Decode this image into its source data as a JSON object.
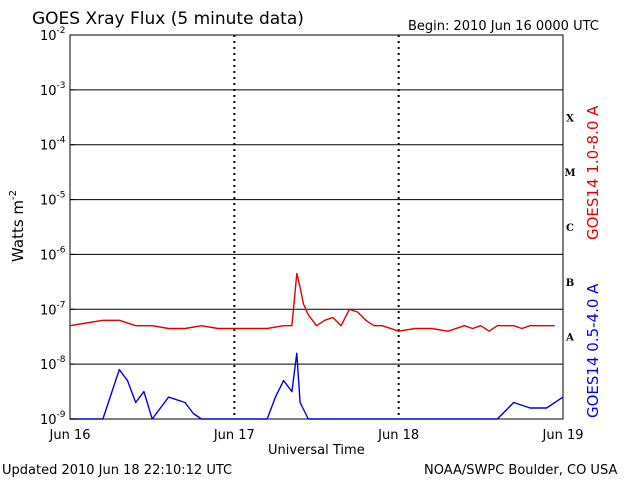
{
  "chart_data": {
    "type": "line",
    "title": "GOES Xray Flux (5 minute data)",
    "begin_label": "Begin:  2010 Jun 16 0000 UTC",
    "xlabel": "Universal Time",
    "ylabel_main": "Watts m",
    "ylabel_sup": "-2",
    "x_ticks": [
      "Jun 16",
      "Jun 17",
      "Jun 18",
      "Jun 19"
    ],
    "y_ticks": [
      {
        "base": "10",
        "exp": "-2"
      },
      {
        "base": "10",
        "exp": "-3"
      },
      {
        "base": "10",
        "exp": "-4"
      },
      {
        "base": "10",
        "exp": "-5"
      },
      {
        "base": "10",
        "exp": "-6"
      },
      {
        "base": "10",
        "exp": "-7"
      },
      {
        "base": "10",
        "exp": "-8"
      },
      {
        "base": "10",
        "exp": "-9"
      }
    ],
    "y_log_range": [
      -9,
      -2
    ],
    "x_range_days": [
      0,
      3
    ],
    "flare_classes": [
      "X",
      "M",
      "C",
      "B",
      "A"
    ],
    "series": [
      {
        "name": "GOES14 1.0-8.0 A",
        "color": "#e00000",
        "x": [
          0,
          0.1,
          0.2,
          0.3,
          0.4,
          0.5,
          0.6,
          0.7,
          0.8,
          0.9,
          1.0,
          1.1,
          1.2,
          1.3,
          1.35,
          1.38,
          1.4,
          1.42,
          1.45,
          1.5,
          1.55,
          1.6,
          1.65,
          1.7,
          1.75,
          1.8,
          1.85,
          1.9,
          2.0,
          2.1,
          2.2,
          2.3,
          2.4,
          2.45,
          2.5,
          2.55,
          2.6,
          2.7,
          2.75,
          2.8,
          2.9,
          2.95
        ],
        "log10_flux": [
          -7.3,
          -7.25,
          -7.2,
          -7.2,
          -7.3,
          -7.3,
          -7.35,
          -7.35,
          -7.3,
          -7.35,
          -7.35,
          -7.35,
          -7.35,
          -7.3,
          -7.3,
          -6.35,
          -6.6,
          -6.9,
          -7.1,
          -7.3,
          -7.2,
          -7.15,
          -7.3,
          -7.0,
          -7.05,
          -7.2,
          -7.3,
          -7.3,
          -7.4,
          -7.35,
          -7.35,
          -7.4,
          -7.3,
          -7.35,
          -7.3,
          -7.4,
          -7.3,
          -7.3,
          -7.35,
          -7.3,
          -7.3,
          -7.3
        ]
      },
      {
        "name": "GOES14 0.5-4.0 A",
        "color": "#0000e0",
        "x": [
          0,
          0.2,
          0.3,
          0.35,
          0.4,
          0.45,
          0.5,
          0.6,
          0.7,
          0.75,
          0.8,
          0.9,
          1.0,
          1.1,
          1.2,
          1.25,
          1.3,
          1.35,
          1.38,
          1.4,
          1.45,
          1.5,
          1.6,
          1.7,
          1.8,
          1.9,
          2.0,
          2.1,
          2.2,
          2.3,
          2.4,
          2.5,
          2.6,
          2.7,
          2.8,
          2.9,
          3.0
        ],
        "log10_flux": [
          -9.0,
          -9.0,
          -8.1,
          -8.3,
          -8.7,
          -8.5,
          -9.0,
          -8.6,
          -8.7,
          -8.9,
          -9.0,
          -9.0,
          -9.0,
          -9.0,
          -9.0,
          -8.6,
          -8.3,
          -8.5,
          -7.8,
          -8.7,
          -9.0,
          -9.0,
          -9.0,
          -9.0,
          -9.0,
          -9.0,
          -9.0,
          -9.0,
          -9.0,
          -9.0,
          -9.0,
          -9.0,
          -9.0,
          -8.7,
          -8.8,
          -8.8,
          -8.6
        ]
      }
    ],
    "legend_placement": "right, vertical"
  },
  "footer": {
    "updated": "Updated 2010 Jun 18 22:10:12 UTC",
    "credit": "NOAA/SWPC Boulder, CO USA"
  }
}
